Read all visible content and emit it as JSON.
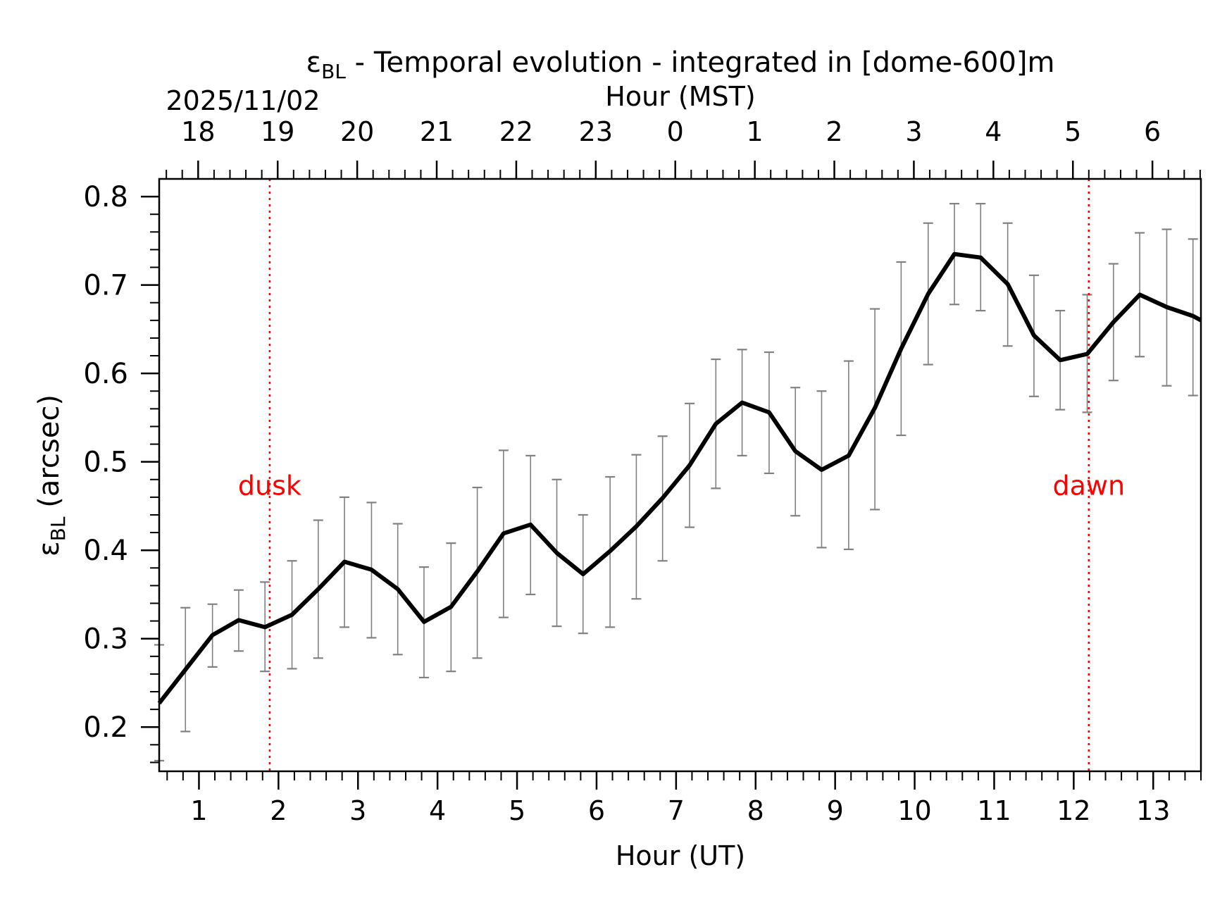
{
  "chart_data": {
    "type": "line",
    "title_prefix": "ε",
    "title_sub": "BL",
    "title_rest": " - Temporal evolution - integrated in [dome-600]m",
    "date_label": "2025/11/02",
    "top_axis_label": "Hour (MST)",
    "xlabel": "Hour (UT)",
    "ylabel_prefix": "ε",
    "ylabel_sub": "BL",
    "ylabel_rest": " (arcsec)",
    "xlim": [
      0.5,
      13.6
    ],
    "ylim": [
      0.15,
      0.82
    ],
    "x_ticks": [
      "1",
      "2",
      "3",
      "4",
      "5",
      "6",
      "7",
      "8",
      "9",
      "10",
      "11",
      "12",
      "13"
    ],
    "x_tick_values": [
      1,
      2,
      3,
      4,
      5,
      6,
      7,
      8,
      9,
      10,
      11,
      12,
      13
    ],
    "top_ticks": [
      "18",
      "19",
      "20",
      "21",
      "22",
      "23",
      "0",
      "1",
      "2",
      "3",
      "4",
      "5",
      "6"
    ],
    "top_tick_values": [
      0.99,
      1.99,
      2.99,
      3.99,
      4.99,
      5.99,
      6.99,
      7.99,
      8.99,
      9.99,
      10.99,
      11.99,
      12.99
    ],
    "y_ticks": [
      "0.2",
      "0.3",
      "0.4",
      "0.5",
      "0.6",
      "0.7",
      "0.8"
    ],
    "y_tick_values": [
      0.2,
      0.3,
      0.4,
      0.5,
      0.6,
      0.7,
      0.8
    ],
    "series": [
      {
        "color": "#000000",
        "x": [
          0.5,
          0.83,
          1.17,
          1.5,
          1.83,
          2.17,
          2.5,
          2.83,
          3.17,
          3.5,
          3.83,
          4.17,
          4.5,
          4.83,
          5.17,
          5.5,
          5.83,
          6.17,
          6.5,
          6.83,
          7.17,
          7.5,
          7.83,
          8.17,
          8.5,
          8.83,
          9.17,
          9.5,
          9.83,
          10.17,
          10.5,
          10.83,
          11.17,
          11.5,
          11.83,
          12.17,
          12.5,
          12.83,
          13.17,
          13.5,
          13.6
        ],
        "y": [
          0.227,
          0.265,
          0.304,
          0.321,
          0.313,
          0.327,
          0.356,
          0.387,
          0.378,
          0.356,
          0.319,
          0.336,
          0.376,
          0.419,
          0.429,
          0.397,
          0.373,
          0.399,
          0.427,
          0.459,
          0.496,
          0.543,
          0.567,
          0.556,
          0.512,
          0.491,
          0.507,
          0.561,
          0.628,
          0.69,
          0.735,
          0.731,
          0.701,
          0.643,
          0.615,
          0.622,
          0.658,
          0.689,
          0.675,
          0.665,
          0.66
        ]
      },
      {
        "color": "#808080",
        "x": [
          0.5,
          0.83,
          1.17,
          1.5,
          1.83,
          2.17,
          2.5,
          2.83,
          3.17,
          3.5,
          3.83,
          4.17,
          4.5,
          4.83,
          5.17,
          5.5,
          5.83,
          6.17,
          6.5,
          6.83,
          7.17,
          7.5,
          7.83,
          8.17,
          8.5,
          8.83,
          9.17,
          9.5,
          9.83,
          10.17,
          10.5,
          10.83,
          11.17,
          11.5,
          11.83,
          12.17,
          12.5,
          12.83,
          13.17,
          13.5
        ],
        "y_low": [
          0.162,
          0.195,
          0.268,
          0.286,
          0.263,
          0.266,
          0.278,
          0.313,
          0.301,
          0.282,
          0.256,
          0.263,
          0.278,
          0.324,
          0.35,
          0.314,
          0.306,
          0.313,
          0.345,
          0.388,
          0.426,
          0.47,
          0.507,
          0.487,
          0.439,
          0.403,
          0.401,
          0.446,
          0.53,
          0.61,
          0.678,
          0.671,
          0.631,
          0.574,
          0.559,
          0.556,
          0.592,
          0.619,
          0.586,
          0.575
        ],
        "y_high": [
          0.293,
          0.335,
          0.339,
          0.355,
          0.364,
          0.388,
          0.434,
          0.46,
          0.454,
          0.43,
          0.381,
          0.408,
          0.471,
          0.513,
          0.507,
          0.48,
          0.44,
          0.483,
          0.508,
          0.529,
          0.566,
          0.616,
          0.627,
          0.624,
          0.584,
          0.58,
          0.614,
          0.673,
          0.726,
          0.77,
          0.792,
          0.792,
          0.77,
          0.711,
          0.671,
          0.689,
          0.724,
          0.759,
          0.763,
          0.752
        ]
      }
    ],
    "annotations": [
      {
        "x": 1.89,
        "label": "dusk",
        "color": "#ff0000",
        "label_y": 0.473
      },
      {
        "x": 12.19,
        "label": "dawn",
        "color": "#ff0000",
        "label_y": 0.473
      }
    ],
    "grid": false
  }
}
